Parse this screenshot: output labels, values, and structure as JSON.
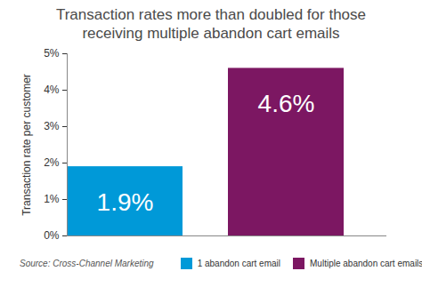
{
  "chart_data": {
    "type": "bar",
    "title": "Transaction rates more than doubled for those receiving multiple abandon cart emails",
    "y_label": "Transaction rate per customer",
    "categories": [
      "1 abandon cart email",
      "Multiple abandon cart emails"
    ],
    "values": [
      1.9,
      4.6
    ],
    "value_labels": [
      "1.9%",
      "4.6%"
    ],
    "colors": [
      "#0099d8",
      "#7c1762"
    ],
    "ylim": [
      0,
      5
    ],
    "yticks": [
      {
        "value": 0,
        "label": "0%"
      },
      {
        "value": 1,
        "label": "1%"
      },
      {
        "value": 2,
        "label": "2%"
      },
      {
        "value": 3,
        "label": "3%"
      },
      {
        "value": 4,
        "label": "4%"
      },
      {
        "value": 5,
        "label": "5%"
      }
    ],
    "grid": false,
    "data_labels": true,
    "tick_labels": "y",
    "legend": "bottom",
    "source": "Source: Cross-Channel Marketing"
  }
}
